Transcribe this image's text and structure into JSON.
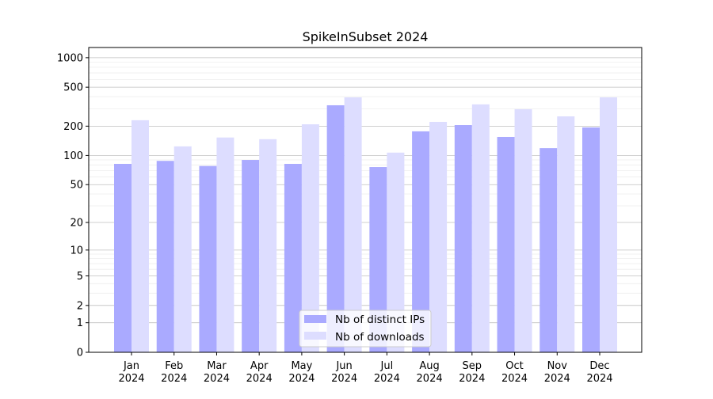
{
  "chart_data": {
    "type": "bar",
    "title": "SpikeInSubset 2024",
    "xlabel": "",
    "ylabel": "",
    "yscale": "log(1+x)",
    "ylim": [
      0,
      1270
    ],
    "yticks": [
      0,
      1,
      2,
      5,
      10,
      20,
      50,
      100,
      200,
      500,
      1000
    ],
    "grid": true,
    "legend_position": "bottom-center",
    "categories": [
      "Jan\n2024",
      "Feb\n2024",
      "Mar\n2024",
      "Apr\n2024",
      "May\n2024",
      "Jun\n2024",
      "Jul\n2024",
      "Aug\n2024",
      "Sep\n2024",
      "Oct\n2024",
      "Nov\n2024",
      "Dec\n2024"
    ],
    "series": [
      {
        "name": "Nb of distinct IPs",
        "color": "#aaaaff",
        "values": [
          82,
          88,
          78,
          90,
          82,
          327,
          76,
          177,
          205,
          155,
          119,
          194
        ]
      },
      {
        "name": "Nb of downloads",
        "color": "#ddddff",
        "values": [
          230,
          124,
          153,
          147,
          209,
          394,
          107,
          221,
          334,
          298,
          252,
          394
        ]
      }
    ]
  }
}
